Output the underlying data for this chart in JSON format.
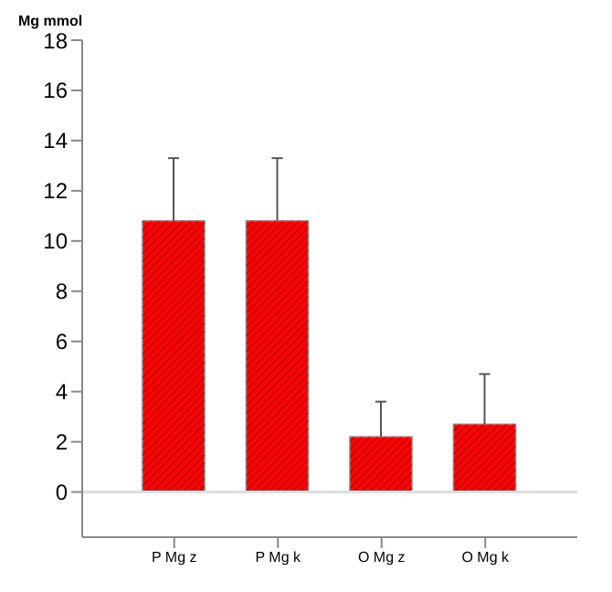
{
  "chart_data": {
    "type": "bar",
    "ylabel": "Mg mmol",
    "categories": [
      "P Mg z",
      "P Mg k",
      "O Mg z",
      "O Mg k"
    ],
    "values": [
      10.8,
      10.8,
      2.2,
      2.7
    ],
    "errors": [
      [
        10.8,
        13.3
      ],
      [
        10.8,
        13.3
      ],
      [
        2.2,
        3.6
      ],
      [
        2.7,
        4.7
      ]
    ],
    "color": "#ff0000",
    "ylim": [
      -1.8,
      18
    ],
    "yticks": [
      0,
      2,
      4,
      6,
      8,
      10,
      12,
      14,
      16,
      18
    ],
    "ref_lines": [
      {
        "axis": "y",
        "value": 0,
        "color": "#dddddd"
      }
    ],
    "grid": false
  }
}
